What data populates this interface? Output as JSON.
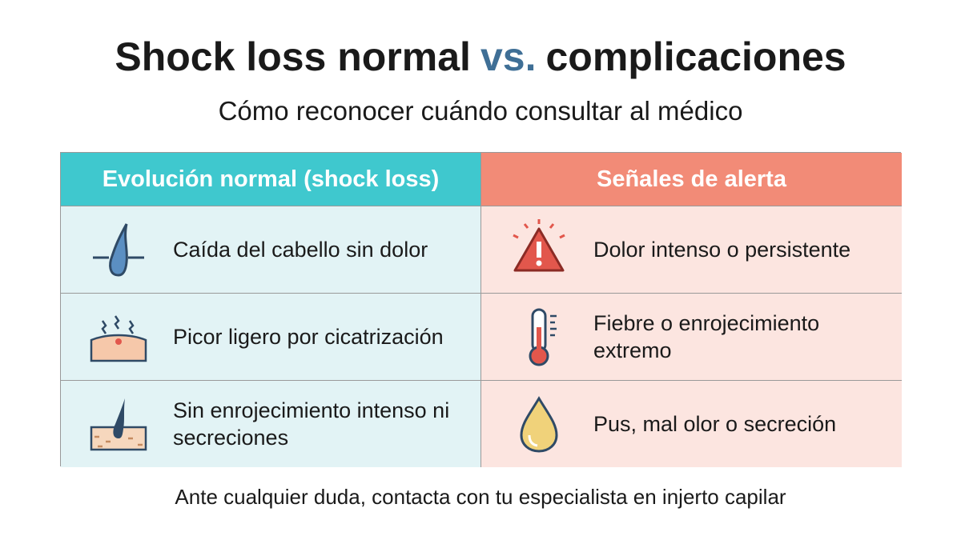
{
  "header": {
    "title_start": "Shock loss normal",
    "title_highlight": "vs.",
    "title_end": "complicaciones",
    "subtitle": "Cómo reconocer cuándo consultar al médico"
  },
  "table": {
    "columns": [
      "Evolución normal (shock loss)",
      "Señales de alerta"
    ],
    "rows": [
      [
        "Caída del cabello sin dolor",
        "Dolor intenso o persistente"
      ],
      [
        "Picor ligero por cicatrización",
        "Fiebre o enrojecimiento extremo"
      ],
      [
        "Sin enrojecimiento intenso ni secreciones",
        "Pus, mal olor o secreción"
      ]
    ]
  },
  "footer": "Ante cualquier duda, contacta con tu especialista en injerto capilar"
}
